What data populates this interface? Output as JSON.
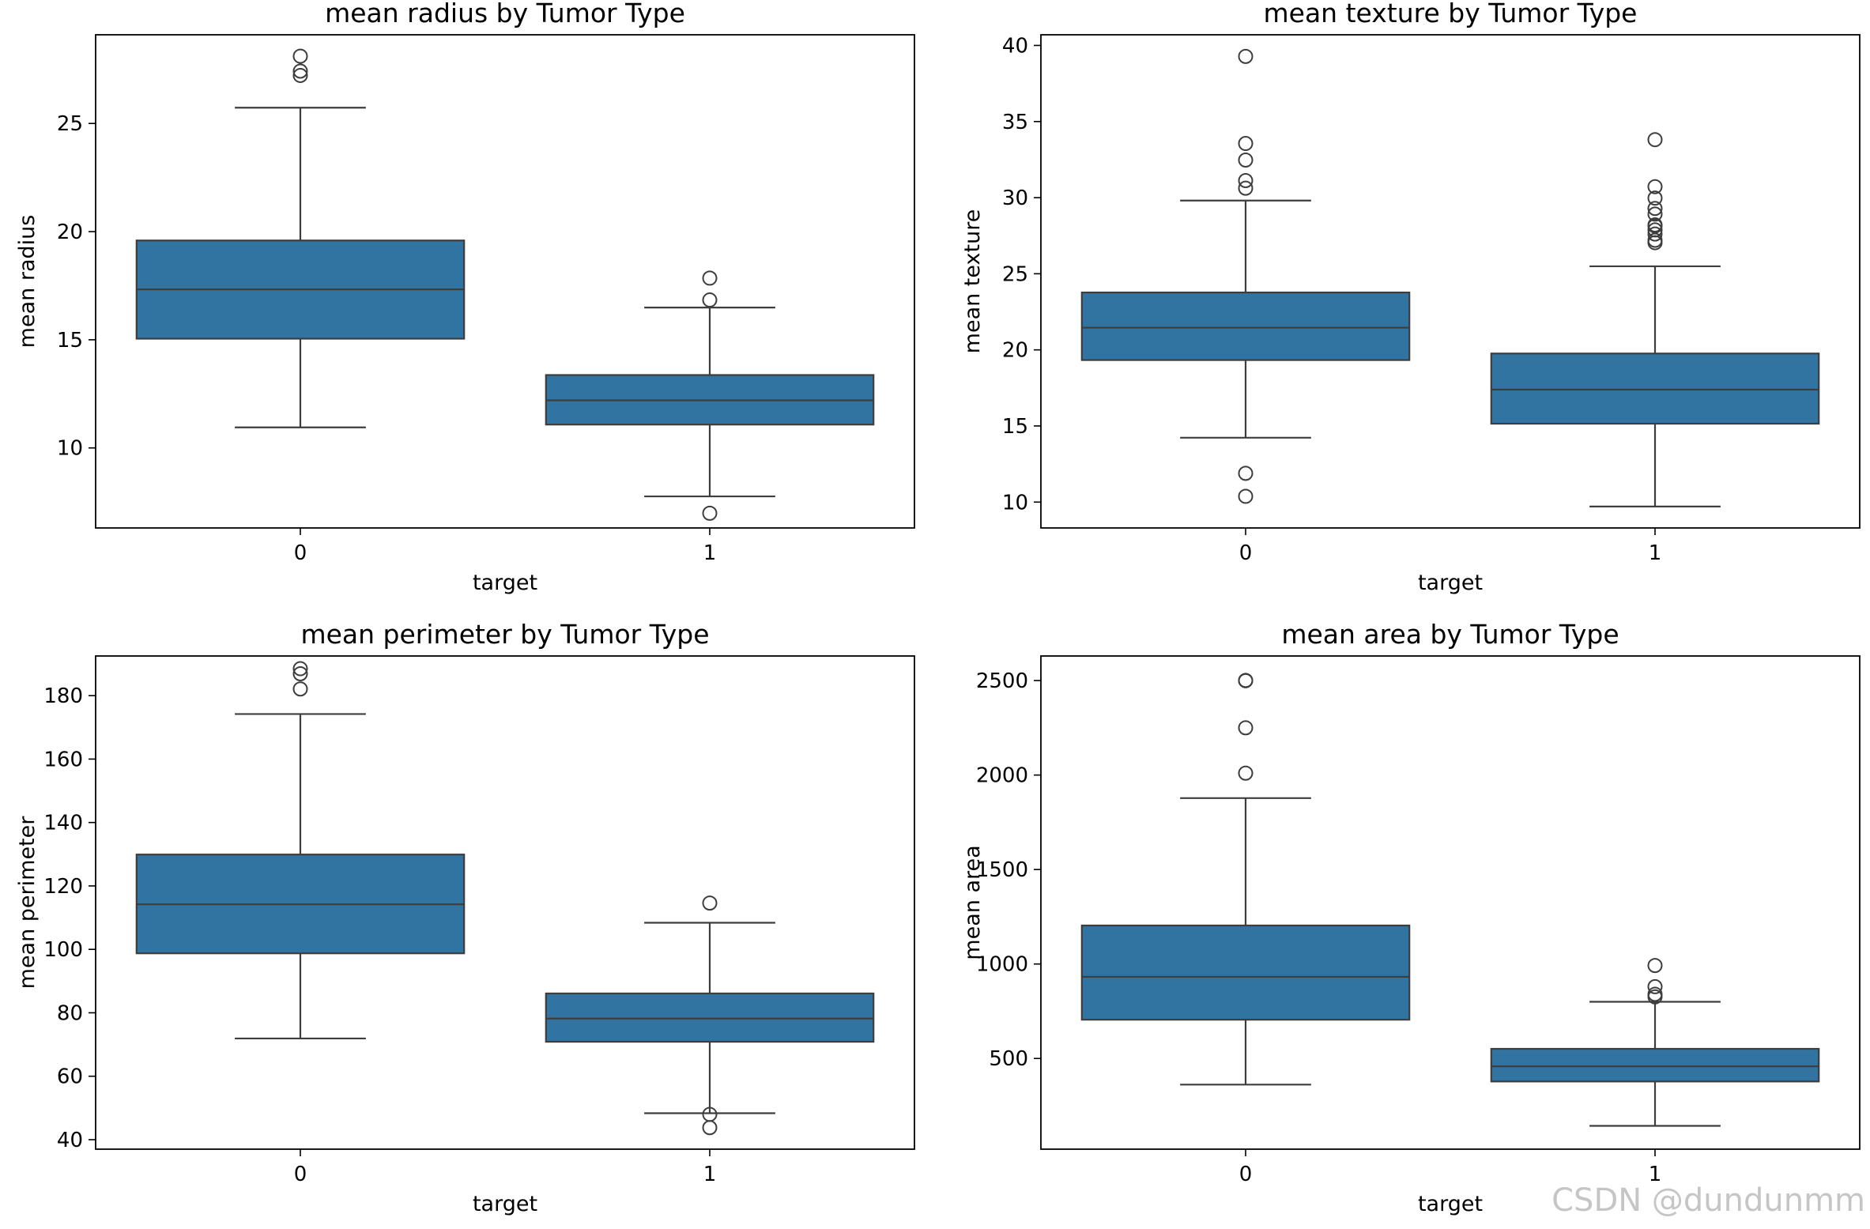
{
  "watermark": "CSDN @dundunmm",
  "colors": {
    "box_fill": "#3274a1",
    "line": "#3d3d3d",
    "frame": "#000000"
  },
  "chart_data": [
    {
      "type": "box",
      "title": "mean radius by Tumor Type",
      "xlabel": "target",
      "ylabel": "mean radius",
      "categories": [
        "0",
        "1"
      ],
      "ylim": [
        6.3,
        29.1
      ],
      "yticks": [
        10,
        15,
        20,
        25
      ],
      "boxes": [
        {
          "category": "0",
          "whislo": 10.95,
          "q1": 15.05,
          "med": 17.33,
          "q3": 19.59,
          "whishi": 25.73,
          "fliers": [
            27.22,
            27.42,
            28.11
          ]
        },
        {
          "category": "1",
          "whislo": 7.76,
          "q1": 11.08,
          "med": 12.2,
          "q3": 13.37,
          "whishi": 16.49,
          "fliers": [
            6.98,
            16.84,
            17.85
          ]
        }
      ]
    },
    {
      "type": "box",
      "title": "mean texture by Tumor Type",
      "xlabel": "target",
      "ylabel": "mean texture",
      "categories": [
        "0",
        "1"
      ],
      "ylim": [
        8.3,
        40.7
      ],
      "yticks": [
        10,
        15,
        20,
        25,
        30,
        35,
        40
      ],
      "boxes": [
        {
          "category": "0",
          "whislo": 14.23,
          "q1": 19.33,
          "med": 21.46,
          "q3": 23.77,
          "whishi": 29.81,
          "fliers": [
            10.38,
            11.89,
            30.62,
            31.12,
            32.47,
            33.56,
            39.28
          ]
        },
        {
          "category": "1",
          "whislo": 9.71,
          "q1": 15.15,
          "med": 17.39,
          "q3": 19.76,
          "whishi": 25.49,
          "fliers": [
            27.04,
            27.2,
            27.61,
            27.88,
            28.14,
            28.21,
            28.92,
            29.29,
            29.97,
            30.72,
            33.81
          ]
        }
      ]
    },
    {
      "type": "box",
      "title": "mean perimeter by Tumor Type",
      "xlabel": "target",
      "ylabel": "mean perimeter",
      "categories": [
        "0",
        "1"
      ],
      "ylim": [
        37,
        192.5
      ],
      "yticks": [
        40,
        60,
        80,
        100,
        120,
        140,
        160,
        180
      ],
      "boxes": [
        {
          "category": "0",
          "whislo": 71.9,
          "q1": 98.75,
          "med": 114.2,
          "q3": 129.9,
          "whishi": 174.2,
          "fliers": [
            182.1,
            186.9,
            188.5
          ]
        },
        {
          "category": "1",
          "whislo": 48.34,
          "q1": 70.87,
          "med": 78.18,
          "q3": 86.1,
          "whishi": 108.4,
          "fliers": [
            43.79,
            47.98,
            114.6
          ]
        }
      ]
    },
    {
      "type": "box",
      "title": "mean area by Tumor Type",
      "xlabel": "target",
      "ylabel": "mean area",
      "categories": [
        "0",
        "1"
      ],
      "ylim": [
        20,
        2630
      ],
      "yticks": [
        500,
        1000,
        1500,
        2000,
        2500
      ],
      "boxes": [
        {
          "category": "0",
          "whislo": 361.6,
          "q1": 705.3,
          "med": 932,
          "q3": 1203.8,
          "whishi": 1878,
          "fliers": [
            2010,
            2250,
            2499,
            2501
          ]
        },
        {
          "category": "1",
          "whislo": 143.5,
          "q1": 378.2,
          "med": 458.4,
          "q3": 551.1,
          "whishi": 800,
          "fliers": [
            826,
            840,
            880,
            992
          ]
        }
      ]
    }
  ]
}
